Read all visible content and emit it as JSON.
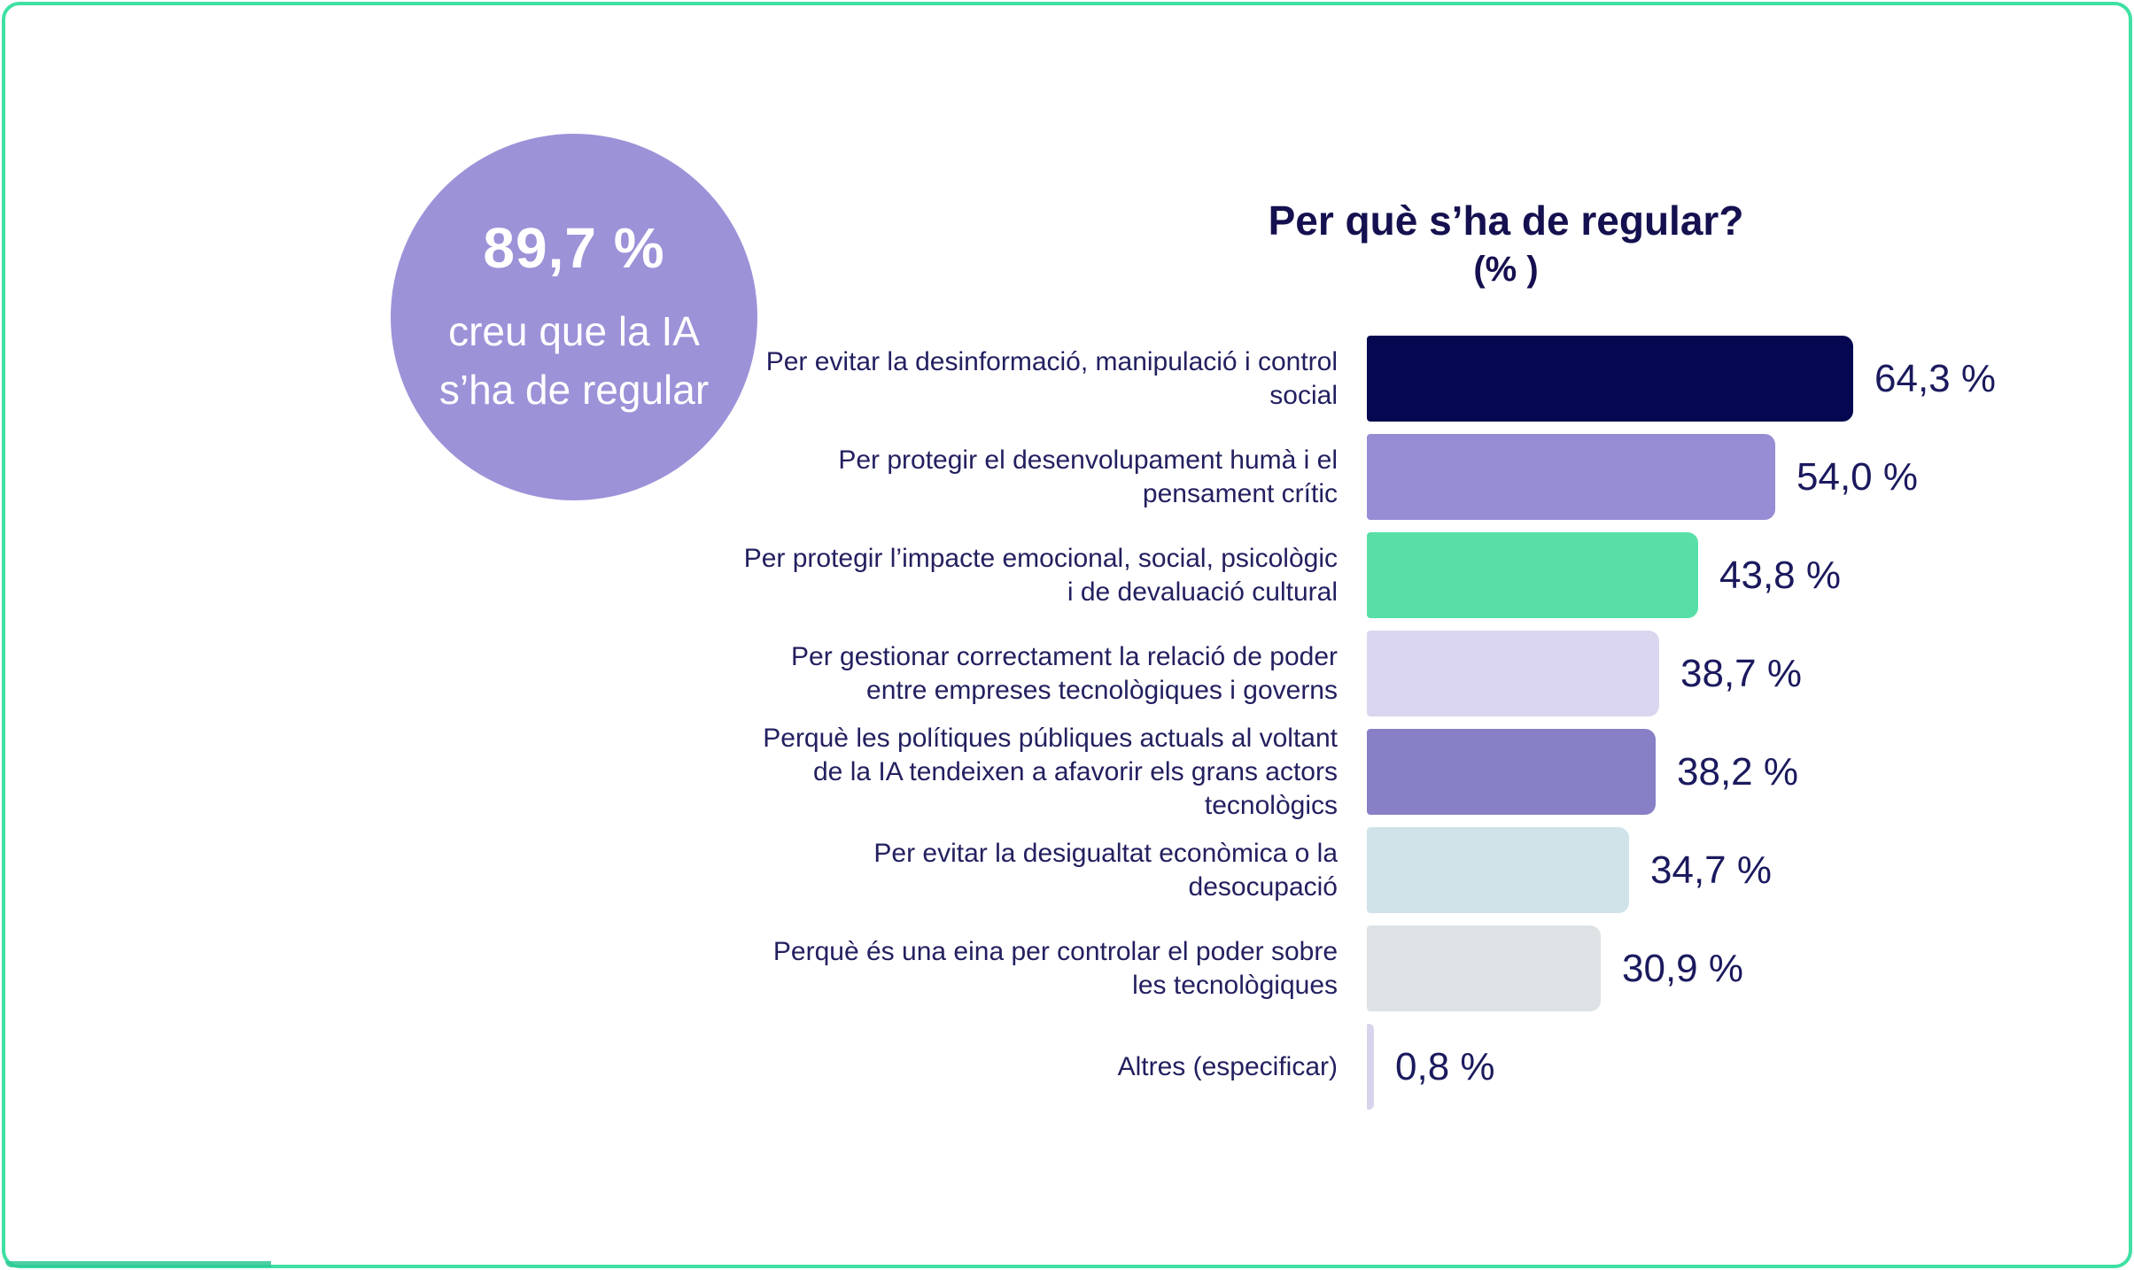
{
  "frame": {
    "border_color": "#3FE0A3"
  },
  "highlight_circle": {
    "color": "#9C92D8",
    "value": "89,7 %",
    "line1": "creu que la IA",
    "line2": "s’ha de regular"
  },
  "chart_data": {
    "type": "bar",
    "orientation": "horizontal",
    "title": "Per què s’ha de regular?",
    "subtitle": "(% )",
    "xlim": [
      0,
      70
    ],
    "grid": false,
    "legend": false,
    "text_color": "#1B1A5E",
    "categories": [
      "Per evitar la desinformació, manipulació i control social",
      "Per protegir el desenvolupament humà i el pensament crític",
      "Per protegir l’impacte emocional, social, psicològic i de devaluació cultural",
      "Per gestionar correctament la relació de poder entre empreses tecnològiques i governs",
      "Perquè les polítiques públiques actuals al voltant de la IA tendeixen a afavorir els grans actors tecnològics",
      "Per evitar la desigualtat econòmica o la desocupació",
      "Perquè és una eina per controlar el poder sobre les tecnològiques",
      "Altres (especificar)"
    ],
    "values": [
      64.3,
      54.0,
      43.8,
      38.7,
      38.2,
      34.7,
      30.9,
      0.8
    ],
    "value_labels": [
      "64,3 %",
      "54,0 %",
      "43,8 %",
      "38,7 %",
      "38,2 %",
      "34,7 %",
      "30,9 %",
      "0,8 %"
    ],
    "bar_colors": [
      "#050850",
      "#968DD5",
      "#58DFA7",
      "#DBD6EF",
      "#8780C7",
      "#CFE3E8",
      "#DDE3E5",
      "#D9D4EE"
    ]
  }
}
